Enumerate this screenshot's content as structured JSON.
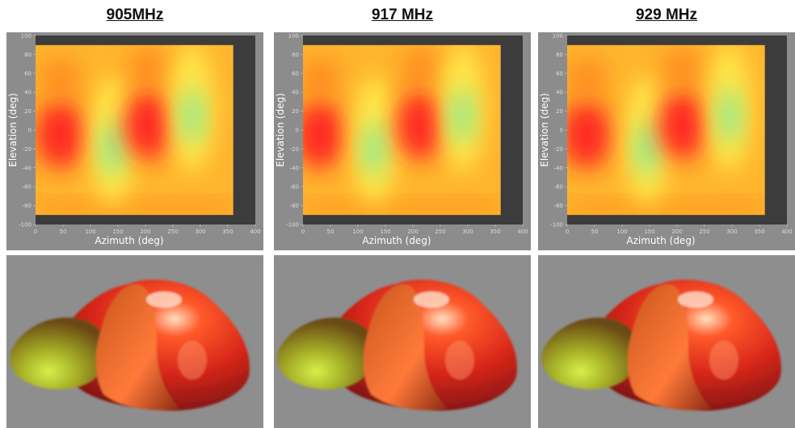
{
  "panels": [
    {
      "title": "905MHz"
    },
    {
      "title": "917 MHz"
    },
    {
      "title": "929 MHz"
    }
  ],
  "chart_data": [
    {
      "type": "heatmap",
      "title": "905MHz",
      "xlabel": "Azimuth (deg)",
      "ylabel": "Elevation (deg)",
      "xlim": [
        0,
        400
      ],
      "ylim": [
        -100,
        100
      ],
      "xticks": [
        0,
        50,
        100,
        150,
        200,
        250,
        300,
        350,
        400
      ],
      "yticks": [
        -100,
        -80,
        -60,
        -40,
        -20,
        0,
        20,
        40,
        60,
        80,
        100
      ],
      "data_extent": {
        "azimuth": [
          0,
          360
        ],
        "elevation": [
          -90,
          90
        ]
      },
      "colormap": [
        "#ff2020",
        "#ff7f1f",
        "#ffb52e",
        "#ffe94a",
        "#7fe89a"
      ],
      "hotspots": [
        {
          "azimuth": 45,
          "elevation": -5,
          "level": 0.95
        },
        {
          "azimuth": 140,
          "elevation": -20,
          "level": 0.05
        },
        {
          "azimuth": 205,
          "elevation": 5,
          "level": 0.8
        },
        {
          "azimuth": 285,
          "elevation": 15,
          "level": 0.15
        }
      ]
    },
    {
      "type": "heatmap",
      "title": "917 MHz",
      "xlabel": "Azimuth (deg)",
      "ylabel": "Elevation (deg)",
      "xlim": [
        0,
        400
      ],
      "ylim": [
        -100,
        100
      ],
      "xticks": [
        0,
        50,
        100,
        150,
        200,
        250,
        300,
        350,
        400
      ],
      "yticks": [
        -100,
        -80,
        -60,
        -40,
        -20,
        0,
        20,
        40,
        60,
        80,
        100
      ],
      "data_extent": {
        "azimuth": [
          0,
          360
        ],
        "elevation": [
          -90,
          90
        ]
      },
      "colormap": [
        "#ff2020",
        "#ff7f1f",
        "#ffb52e",
        "#ffe94a",
        "#7fe89a"
      ],
      "hotspots": [
        {
          "azimuth": 30,
          "elevation": -5,
          "level": 0.95
        },
        {
          "azimuth": 130,
          "elevation": -20,
          "level": 0.15
        },
        {
          "azimuth": 215,
          "elevation": 5,
          "level": 0.8
        },
        {
          "azimuth": 290,
          "elevation": 15,
          "level": 0.25
        }
      ]
    },
    {
      "type": "heatmap",
      "title": "929 MHz",
      "xlabel": "Azimuth (deg)",
      "ylabel": "Elevation (deg)",
      "xlim": [
        0,
        400
      ],
      "ylim": [
        -100,
        100
      ],
      "xticks": [
        0,
        50,
        100,
        150,
        200,
        250,
        300,
        350,
        400
      ],
      "yticks": [
        -100,
        -80,
        -60,
        -40,
        -20,
        0,
        20,
        40,
        60,
        80,
        100
      ],
      "data_extent": {
        "azimuth": [
          0,
          360
        ],
        "elevation": [
          -90,
          90
        ]
      },
      "colormap": [
        "#ff2020",
        "#ff7f1f",
        "#ffb52e",
        "#ffe94a",
        "#7fe89a"
      ],
      "hotspots": [
        {
          "azimuth": 35,
          "elevation": -5,
          "level": 0.95
        },
        {
          "azimuth": 145,
          "elevation": -20,
          "level": 0.05
        },
        {
          "azimuth": 210,
          "elevation": 5,
          "level": 0.8
        },
        {
          "azimuth": 295,
          "elevation": 15,
          "level": 0.15
        }
      ]
    }
  ]
}
